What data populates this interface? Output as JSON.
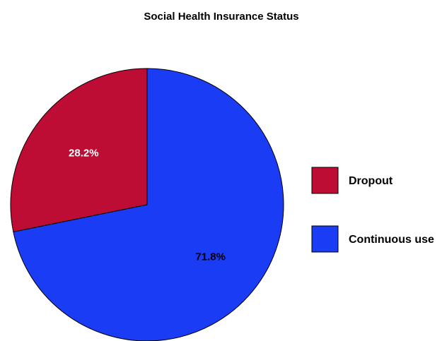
{
  "chart_data": {
    "type": "pie",
    "title": "Social Health Insurance Status",
    "slices": [
      {
        "name": "Dropout",
        "value": 28.2,
        "label": "28.2%",
        "color": "#BE0D34",
        "label_color": "#ffffff"
      },
      {
        "name": "Continuous use",
        "value": 71.8,
        "label": "71.8%",
        "color": "#1A3CF5",
        "label_color": "#000000"
      }
    ],
    "start_position": "12 o'clock",
    "direction": "counterclockwise from Dropout",
    "legend": {
      "placement": "right",
      "entries": [
        "Dropout",
        "Continuous use"
      ]
    }
  }
}
